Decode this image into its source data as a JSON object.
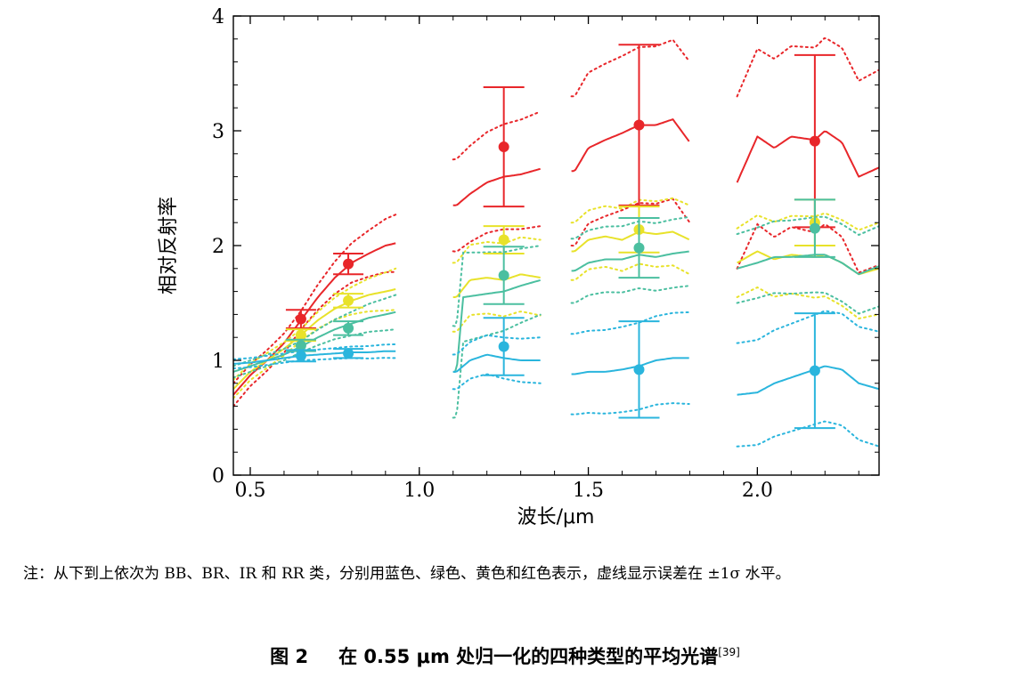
{
  "chart_data": {
    "type": "line",
    "xlabel": "波长/μm",
    "ylabel": "相对反射率",
    "xlim": [
      0.45,
      2.36
    ],
    "ylim": [
      0,
      4
    ],
    "x_ticks": [
      0.5,
      1.0,
      1.5,
      2.0
    ],
    "x_tick_labels": [
      "0.5",
      "1.0",
      "1.5",
      "2.0"
    ],
    "y_ticks": [
      0,
      1,
      2,
      3,
      4
    ],
    "y_tick_labels": [
      "0",
      "1",
      "2",
      "3",
      "4"
    ],
    "segments": [
      [
        0.45,
        0.93
      ],
      [
        1.1,
        1.36
      ],
      [
        1.45,
        1.8
      ],
      [
        1.94,
        2.36
      ]
    ],
    "series": [
      {
        "color": "#e8262a",
        "mean": [
          [
            0.45,
            0.7
          ],
          [
            0.5,
            0.87
          ],
          [
            0.55,
            1.0
          ],
          [
            0.6,
            1.15
          ],
          [
            0.65,
            1.35
          ],
          [
            0.7,
            1.55
          ],
          [
            0.75,
            1.72
          ],
          [
            0.8,
            1.85
          ],
          [
            0.85,
            1.93
          ],
          [
            0.9,
            2.0
          ],
          [
            0.93,
            2.02
          ],
          [
            1.11,
            2.35
          ],
          [
            1.15,
            2.45
          ],
          [
            1.2,
            2.55
          ],
          [
            1.25,
            2.6
          ],
          [
            1.3,
            2.62
          ],
          [
            1.36,
            2.67
          ],
          [
            1.46,
            2.65
          ],
          [
            1.5,
            2.85
          ],
          [
            1.55,
            2.92
          ],
          [
            1.6,
            2.98
          ],
          [
            1.65,
            3.05
          ],
          [
            1.7,
            3.05
          ],
          [
            1.75,
            3.1
          ],
          [
            1.8,
            2.9
          ],
          [
            1.94,
            2.55
          ],
          [
            2.0,
            2.95
          ],
          [
            2.05,
            2.85
          ],
          [
            2.1,
            2.95
          ],
          [
            2.17,
            2.92
          ],
          [
            2.2,
            3.0
          ],
          [
            2.25,
            2.9
          ],
          [
            2.3,
            2.6
          ],
          [
            2.36,
            2.68
          ]
        ],
        "sigma": [
          [
            0.45,
            0.1
          ],
          [
            0.65,
            0.08
          ],
          [
            0.93,
            0.25
          ],
          [
            1.1,
            0.4
          ],
          [
            1.36,
            0.5
          ],
          [
            1.45,
            0.65
          ],
          [
            1.8,
            0.7
          ],
          [
            1.94,
            0.75
          ],
          [
            2.36,
            0.85
          ]
        ],
        "markers": [
          {
            "x": 0.65,
            "y": 1.36,
            "err": 0.08
          },
          {
            "x": 0.79,
            "y": 1.84,
            "err": 0.09
          },
          {
            "x": 1.25,
            "y": 2.86,
            "err": 0.52
          },
          {
            "x": 1.65,
            "y": 3.05,
            "err": 0.7
          },
          {
            "x": 2.17,
            "y": 2.91,
            "err": 0.75
          }
        ]
      },
      {
        "color": "#e8e22a",
        "mean": [
          [
            0.45,
            0.75
          ],
          [
            0.5,
            0.9
          ],
          [
            0.55,
            1.0
          ],
          [
            0.6,
            1.1
          ],
          [
            0.65,
            1.22
          ],
          [
            0.7,
            1.35
          ],
          [
            0.75,
            1.45
          ],
          [
            0.8,
            1.52
          ],
          [
            0.85,
            1.57
          ],
          [
            0.9,
            1.6
          ],
          [
            0.93,
            1.62
          ],
          [
            1.11,
            1.55
          ],
          [
            1.15,
            1.7
          ],
          [
            1.2,
            1.72
          ],
          [
            1.25,
            1.7
          ],
          [
            1.3,
            1.75
          ],
          [
            1.36,
            1.72
          ],
          [
            1.46,
            1.95
          ],
          [
            1.5,
            2.05
          ],
          [
            1.55,
            2.08
          ],
          [
            1.6,
            2.05
          ],
          [
            1.65,
            2.12
          ],
          [
            1.7,
            2.1
          ],
          [
            1.75,
            2.12
          ],
          [
            1.8,
            2.05
          ],
          [
            1.94,
            1.85
          ],
          [
            2.0,
            1.95
          ],
          [
            2.05,
            1.88
          ],
          [
            2.1,
            1.92
          ],
          [
            2.17,
            1.9
          ],
          [
            2.2,
            1.92
          ],
          [
            2.25,
            1.85
          ],
          [
            2.3,
            1.75
          ],
          [
            2.36,
            1.8
          ]
        ],
        "sigma": [
          [
            0.45,
            0.08
          ],
          [
            0.65,
            0.05
          ],
          [
            0.93,
            0.18
          ],
          [
            1.1,
            0.3
          ],
          [
            1.36,
            0.33
          ],
          [
            1.45,
            0.25
          ],
          [
            1.8,
            0.3
          ],
          [
            1.94,
            0.3
          ],
          [
            2.36,
            0.4
          ]
        ],
        "markers": [
          {
            "x": 0.65,
            "y": 1.22,
            "err": 0.05
          },
          {
            "x": 0.79,
            "y": 1.52,
            "err": 0.06
          },
          {
            "x": 1.25,
            "y": 2.05,
            "err": 0.12
          },
          {
            "x": 1.65,
            "y": 2.14,
            "err": 0.2
          },
          {
            "x": 2.17,
            "y": 2.2,
            "err": 0.2
          }
        ]
      },
      {
        "color": "#4bbfa0",
        "mean": [
          [
            0.45,
            0.9
          ],
          [
            0.5,
            0.95
          ],
          [
            0.55,
            1.0
          ],
          [
            0.6,
            1.05
          ],
          [
            0.65,
            1.12
          ],
          [
            0.7,
            1.2
          ],
          [
            0.75,
            1.27
          ],
          [
            0.8,
            1.32
          ],
          [
            0.85,
            1.37
          ],
          [
            0.9,
            1.4
          ],
          [
            0.93,
            1.42
          ],
          [
            1.11,
            0.9
          ],
          [
            1.13,
            1.55
          ],
          [
            1.2,
            1.58
          ],
          [
            1.25,
            1.6
          ],
          [
            1.3,
            1.65
          ],
          [
            1.36,
            1.7
          ],
          [
            1.46,
            1.78
          ],
          [
            1.5,
            1.85
          ],
          [
            1.55,
            1.88
          ],
          [
            1.6,
            1.88
          ],
          [
            1.65,
            1.92
          ],
          [
            1.7,
            1.9
          ],
          [
            1.75,
            1.93
          ],
          [
            1.8,
            1.95
          ],
          [
            1.94,
            1.8
          ],
          [
            2.0,
            1.85
          ],
          [
            2.05,
            1.9
          ],
          [
            2.1,
            1.9
          ],
          [
            2.17,
            1.92
          ],
          [
            2.2,
            1.92
          ],
          [
            2.25,
            1.85
          ],
          [
            2.3,
            1.75
          ],
          [
            2.36,
            1.82
          ]
        ],
        "sigma": [
          [
            0.45,
            0.05
          ],
          [
            0.65,
            0.05
          ],
          [
            0.93,
            0.15
          ],
          [
            1.1,
            0.4
          ],
          [
            1.36,
            0.3
          ],
          [
            1.45,
            0.28
          ],
          [
            1.8,
            0.3
          ],
          [
            1.94,
            0.3
          ],
          [
            2.36,
            0.35
          ]
        ],
        "markers": [
          {
            "x": 0.65,
            "y": 1.13,
            "err": 0.05
          },
          {
            "x": 0.79,
            "y": 1.28,
            "err": 0.06
          },
          {
            "x": 1.25,
            "y": 1.74,
            "err": 0.25
          },
          {
            "x": 1.65,
            "y": 1.98,
            "err": 0.26
          },
          {
            "x": 2.17,
            "y": 2.15,
            "err": 0.25
          }
        ]
      },
      {
        "color": "#2ab5dd",
        "mean": [
          [
            0.45,
            0.97
          ],
          [
            0.5,
            0.98
          ],
          [
            0.55,
            1.0
          ],
          [
            0.6,
            1.02
          ],
          [
            0.65,
            1.04
          ],
          [
            0.7,
            1.05
          ],
          [
            0.75,
            1.06
          ],
          [
            0.8,
            1.07
          ],
          [
            0.85,
            1.07
          ],
          [
            0.9,
            1.08
          ],
          [
            0.93,
            1.08
          ],
          [
            1.11,
            0.9
          ],
          [
            1.15,
            1.0
          ],
          [
            1.2,
            1.05
          ],
          [
            1.25,
            1.02
          ],
          [
            1.3,
            1.0
          ],
          [
            1.36,
            1.0
          ],
          [
            1.46,
            0.88
          ],
          [
            1.5,
            0.9
          ],
          [
            1.55,
            0.9
          ],
          [
            1.6,
            0.92
          ],
          [
            1.65,
            0.95
          ],
          [
            1.7,
            1.0
          ],
          [
            1.75,
            1.02
          ],
          [
            1.8,
            1.02
          ],
          [
            1.94,
            0.7
          ],
          [
            2.0,
            0.72
          ],
          [
            2.05,
            0.8
          ],
          [
            2.1,
            0.85
          ],
          [
            2.17,
            0.92
          ],
          [
            2.2,
            0.95
          ],
          [
            2.25,
            0.92
          ],
          [
            2.3,
            0.8
          ],
          [
            2.36,
            0.75
          ]
        ],
        "sigma": [
          [
            0.45,
            0.04
          ],
          [
            0.65,
            0.04
          ],
          [
            0.93,
            0.06
          ],
          [
            1.1,
            0.15
          ],
          [
            1.36,
            0.2
          ],
          [
            1.45,
            0.35
          ],
          [
            1.8,
            0.4
          ],
          [
            1.94,
            0.45
          ],
          [
            2.36,
            0.5
          ]
        ],
        "markers": [
          {
            "x": 0.65,
            "y": 1.04,
            "err": 0.05
          },
          {
            "x": 0.79,
            "y": 1.06,
            "err": 0.04
          },
          {
            "x": 1.25,
            "y": 1.12,
            "err": 0.25
          },
          {
            "x": 1.65,
            "y": 0.92,
            "err": 0.42
          },
          {
            "x": 2.17,
            "y": 0.91,
            "err": 0.5
          }
        ]
      }
    ]
  },
  "note": "注：从下到上依次为 BB、BR、IR 和 RR 类，分别用蓝色、绿色、黄色和红色表示，虚线显示误差在 ±1σ 水平。",
  "caption": {
    "figure_no": "图 2",
    "title": "在 0.55 μm 处归一化的四种类型的平均光谱",
    "ref": "[39]"
  }
}
